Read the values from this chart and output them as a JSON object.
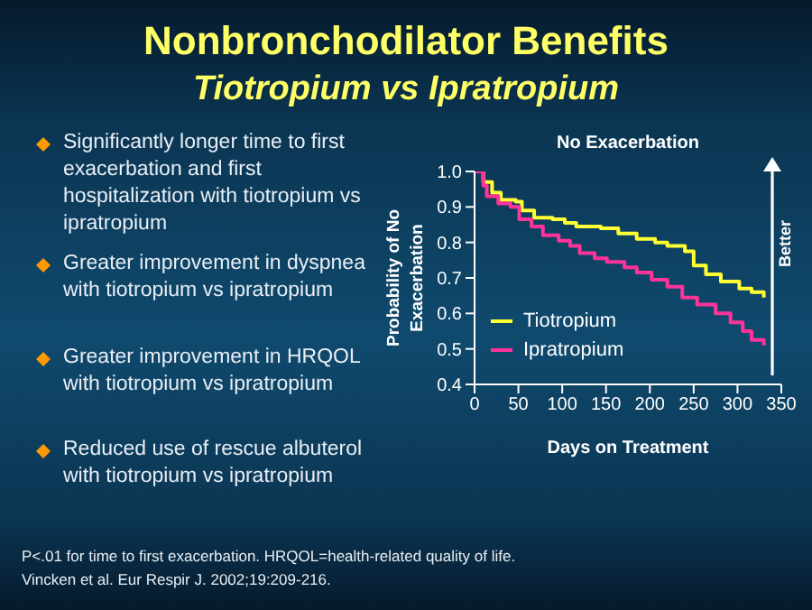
{
  "chart_data": {
    "type": "step",
    "title": "Nonbronchodilator Benefits",
    "subtitle": "Tiotropium vs Ipratropium",
    "xlabel": "Days on Treatment",
    "ylabel": "Probability of No Exacerbation",
    "annotations": [
      "No Exacerbation",
      "Better",
      "Significantly longer time to first exacerbation and first hospitalization with tiotropium vs ipratropium",
      "Greater improvement in dyspnea with tiotropium vs ipratropium",
      "Greater improvement in HRQOL with tiotropium vs ipratropium",
      "Reduced use of rescue albuterol with tiotropium vs ipratropium",
      "P<.01 for time to first exacerbation. HRQOL=health-related quality of life.",
      "Vincken et al. Eur Respir J. 2002;19:209-216."
    ],
    "xlim": [
      0,
      350
    ],
    "xticks": [
      0,
      50,
      100,
      150,
      200,
      250,
      300,
      350
    ],
    "ylim": [
      0.4,
      1.0
    ],
    "yticks": [
      {
        "value": 0.4,
        "label": "0.4"
      },
      {
        "value": 0.5,
        "label": "0.5"
      },
      {
        "value": 0.6,
        "label": "0.6"
      },
      {
        "value": 0.7,
        "label": "0.7"
      },
      {
        "value": 0.8,
        "label": "0.8"
      },
      {
        "value": 0.9,
        "label": "0.9"
      },
      {
        "value": 1.0,
        "label": "1.0"
      }
    ],
    "legend": "bottom left",
    "marker": "none",
    "series": [
      {
        "name": "Tiotropium",
        "color": "#ffff33",
        "x": [
          0,
          10,
          20,
          30,
          47,
          54,
          68,
          89,
          103,
          116,
          144,
          164,
          185,
          206,
          220,
          240,
          250,
          264,
          281,
          302,
          316,
          330
        ],
        "values": [
          1.0,
          0.97,
          0.94,
          0.92,
          0.915,
          0.89,
          0.87,
          0.865,
          0.855,
          0.845,
          0.84,
          0.825,
          0.81,
          0.8,
          0.79,
          0.775,
          0.735,
          0.71,
          0.69,
          0.67,
          0.66,
          0.645
        ]
      },
      {
        "name": "Ipratropium",
        "color": "#ff3399",
        "x": [
          0,
          10,
          14,
          27,
          41,
          51,
          65,
          78,
          96,
          109,
          120,
          137,
          151,
          171,
          185,
          202,
          220,
          237,
          254,
          275,
          292,
          306,
          316,
          330
        ],
        "values": [
          1.0,
          0.96,
          0.93,
          0.91,
          0.9,
          0.865,
          0.845,
          0.82,
          0.805,
          0.79,
          0.77,
          0.755,
          0.745,
          0.73,
          0.715,
          0.695,
          0.675,
          0.645,
          0.625,
          0.6,
          0.575,
          0.55,
          0.525,
          0.51
        ]
      }
    ]
  }
}
